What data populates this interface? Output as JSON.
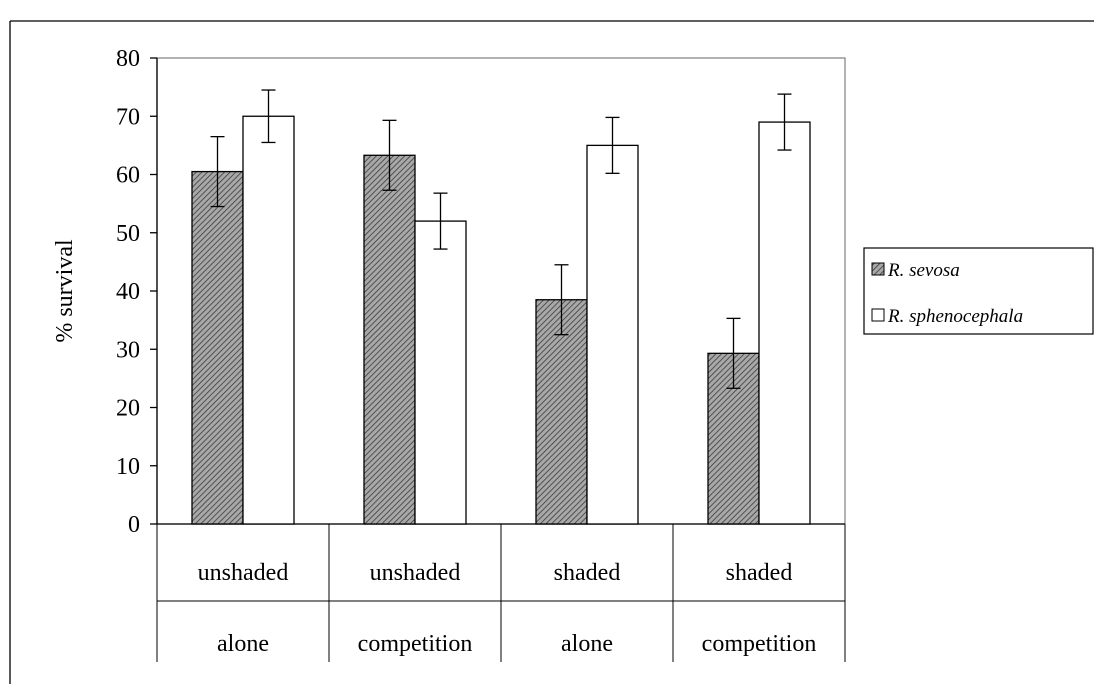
{
  "header_fragment": "",
  "chart_data": {
    "type": "bar",
    "title": "",
    "ylabel": "% survival",
    "xlabel": "",
    "ylim": [
      0,
      80
    ],
    "yticks": [
      0,
      10,
      20,
      30,
      40,
      50,
      60,
      70,
      80
    ],
    "grid": false,
    "legend_position": "right",
    "categories": [
      {
        "line1": "unshaded",
        "line2": "alone"
      },
      {
        "line1": "unshaded",
        "line2": "competition"
      },
      {
        "line1": "shaded",
        "line2": "alone"
      },
      {
        "line1": "shaded",
        "line2": "competition"
      }
    ],
    "series": [
      {
        "name": "R. sevosa",
        "fill": "hatched",
        "color": "#808080",
        "values": [
          60.5,
          63.3,
          38.5,
          29.3
        ],
        "error": [
          6.0,
          6.0,
          6.0,
          6.0
        ]
      },
      {
        "name": "R. sphenocephala",
        "fill": "white",
        "color": "#ffffff",
        "values": [
          70.0,
          52.0,
          65.0,
          69.0
        ],
        "error": [
          4.5,
          4.8,
          4.8,
          4.8
        ]
      }
    ]
  }
}
